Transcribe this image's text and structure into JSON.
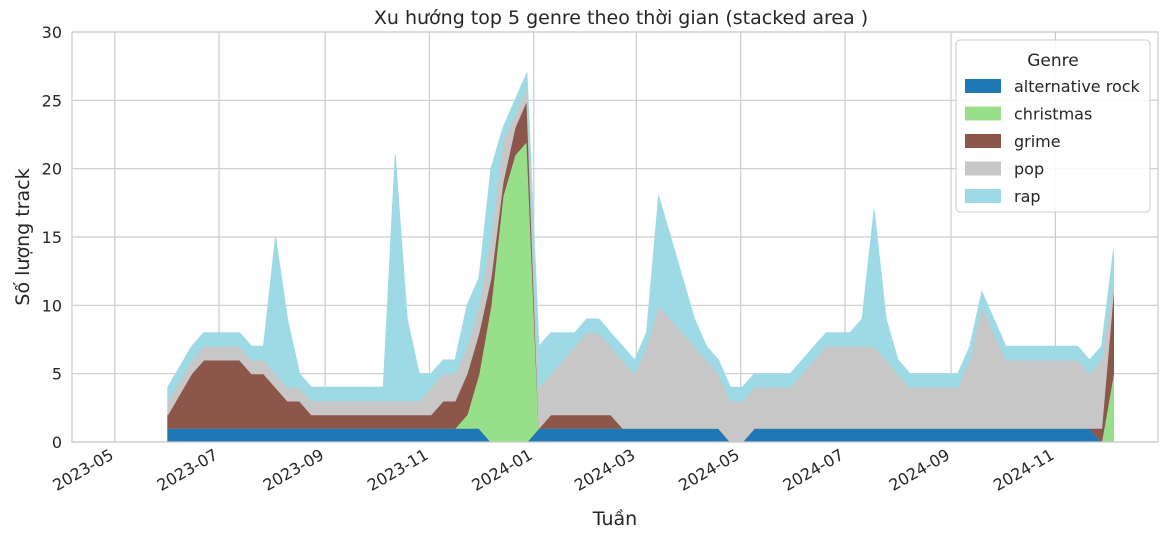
{
  "chart_data": {
    "type": "area",
    "stacked": true,
    "title": "Xu hướng top 5 genre theo thời gian (stacked area )",
    "xlabel": "Tuần",
    "ylabel": "Số lượng track",
    "ylim": [
      0,
      30
    ],
    "yticks": [
      0,
      5,
      10,
      15,
      20,
      25,
      30
    ],
    "xlim": [
      "2023-04-06",
      "2024-12-31"
    ],
    "xticks": [
      "2023-05",
      "2023-07",
      "2023-09",
      "2023-11",
      "2024-01",
      "2024-03",
      "2024-05",
      "2024-07",
      "2024-09",
      "2024-11"
    ],
    "grid": true,
    "legend": {
      "title": "Genre",
      "position": "top-right"
    },
    "dates": [
      "2023-06-01",
      "2023-06-15",
      "2023-06-22",
      "2023-06-29",
      "2023-07-06",
      "2023-07-13",
      "2023-07-20",
      "2023-07-27",
      "2023-08-03",
      "2023-08-10",
      "2023-08-17",
      "2023-08-24",
      "2023-08-31",
      "2023-09-07",
      "2023-09-14",
      "2023-09-21",
      "2023-09-28",
      "2023-10-05",
      "2023-10-12",
      "2023-10-19",
      "2023-10-26",
      "2023-11-02",
      "2023-11-09",
      "2023-11-16",
      "2023-11-23",
      "2023-11-30",
      "2023-12-07",
      "2023-12-14",
      "2023-12-21",
      "2023-12-28",
      "2024-01-04",
      "2024-01-11",
      "2024-01-18",
      "2024-01-25",
      "2024-02-01",
      "2024-02-08",
      "2024-02-15",
      "2024-02-22",
      "2024-02-29",
      "2024-03-07",
      "2024-03-14",
      "2024-03-21",
      "2024-03-28",
      "2024-04-04",
      "2024-04-11",
      "2024-04-18",
      "2024-04-25",
      "2024-05-02",
      "2024-05-09",
      "2024-05-16",
      "2024-05-23",
      "2024-05-30",
      "2024-06-06",
      "2024-06-13",
      "2024-06-20",
      "2024-06-27",
      "2024-07-04",
      "2024-07-11",
      "2024-07-18",
      "2024-07-25",
      "2024-08-01",
      "2024-08-08",
      "2024-08-15",
      "2024-08-22",
      "2024-08-29",
      "2024-09-05",
      "2024-09-12",
      "2024-09-19",
      "2024-09-26",
      "2024-10-03",
      "2024-10-10",
      "2024-10-17",
      "2024-10-24",
      "2024-10-31",
      "2024-11-07",
      "2024-11-14",
      "2024-11-21",
      "2024-11-28",
      "2024-12-05"
    ],
    "series": [
      {
        "name": "alternative rock",
        "color": "#1f77b4",
        "values": [
          1,
          1,
          1,
          1,
          1,
          1,
          1,
          1,
          1,
          1,
          1,
          1,
          1,
          1,
          1,
          1,
          1,
          1,
          1,
          1,
          1,
          1,
          1,
          1,
          1,
          1,
          0,
          0,
          0,
          0,
          1,
          1,
          1,
          1,
          1,
          1,
          1,
          1,
          1,
          1,
          1,
          1,
          1,
          1,
          1,
          1,
          0,
          0,
          1,
          1,
          1,
          1,
          1,
          1,
          1,
          1,
          1,
          1,
          1,
          1,
          1,
          1,
          1,
          1,
          1,
          1,
          1,
          1,
          1,
          1,
          1,
          1,
          1,
          1,
          1,
          1,
          1,
          0,
          0
        ]
      },
      {
        "name": "christmas",
        "color": "#98df8a",
        "values": [
          0,
          0,
          0,
          0,
          0,
          0,
          0,
          0,
          0,
          0,
          0,
          0,
          0,
          0,
          0,
          0,
          0,
          0,
          0,
          0,
          0,
          0,
          0,
          0,
          1,
          4,
          10,
          18,
          21,
          22,
          0,
          0,
          0,
          0,
          0,
          0,
          0,
          0,
          0,
          0,
          0,
          0,
          0,
          0,
          0,
          0,
          0,
          0,
          0,
          0,
          0,
          0,
          0,
          0,
          0,
          0,
          0,
          0,
          0,
          0,
          0,
          0,
          0,
          0,
          0,
          0,
          0,
          0,
          0,
          0,
          0,
          0,
          0,
          0,
          0,
          0,
          0,
          0,
          5
        ]
      },
      {
        "name": "grime",
        "color": "#8c564b",
        "values": [
          1,
          4,
          5,
          5,
          5,
          5,
          4,
          4,
          3,
          2,
          2,
          1,
          1,
          1,
          1,
          1,
          1,
          1,
          1,
          1,
          1,
          1,
          2,
          2,
          3,
          3,
          2,
          1,
          2,
          3,
          0,
          1,
          1,
          1,
          1,
          1,
          1,
          0,
          0,
          0,
          0,
          0,
          0,
          0,
          0,
          0,
          0,
          0,
          0,
          0,
          0,
          0,
          0,
          0,
          0,
          0,
          0,
          0,
          0,
          0,
          0,
          0,
          0,
          0,
          0,
          0,
          0,
          0,
          0,
          0,
          0,
          0,
          0,
          0,
          0,
          0,
          0,
          1,
          6
        ]
      },
      {
        "name": "pop",
        "color": "#c7c7c7",
        "values": [
          1,
          1,
          1,
          1,
          1,
          1,
          1,
          1,
          1,
          1,
          1,
          1,
          1,
          1,
          1,
          1,
          1,
          1,
          1,
          1,
          1,
          2,
          2,
          2,
          2,
          2,
          3,
          3,
          1,
          1,
          3,
          3,
          4,
          5,
          6,
          6,
          5,
          5,
          4,
          6,
          9,
          8,
          7,
          6,
          5,
          4,
          3,
          3,
          3,
          3,
          3,
          3,
          4,
          5,
          6,
          6,
          6,
          6,
          6,
          5,
          4,
          3,
          3,
          3,
          3,
          3,
          5,
          9,
          7,
          5,
          5,
          5,
          5,
          5,
          5,
          5,
          4,
          5,
          1
        ]
      },
      {
        "name": "rap",
        "color": "#9edae5",
        "values": [
          1,
          1,
          1,
          1,
          1,
          1,
          1,
          1,
          10,
          5,
          1,
          1,
          1,
          1,
          1,
          1,
          1,
          1,
          18,
          6,
          2,
          1,
          1,
          1,
          3,
          2,
          5,
          1,
          1,
          1,
          3,
          3,
          2,
          1,
          1,
          1,
          1,
          1,
          1,
          1,
          8,
          6,
          4,
          2,
          1,
          1,
          1,
          1,
          1,
          1,
          1,
          1,
          1,
          1,
          1,
          1,
          1,
          2,
          10,
          3,
          1,
          1,
          1,
          1,
          1,
          1,
          1,
          1,
          1,
          1,
          1,
          1,
          1,
          1,
          1,
          1,
          1,
          1,
          2
        ]
      }
    ]
  }
}
